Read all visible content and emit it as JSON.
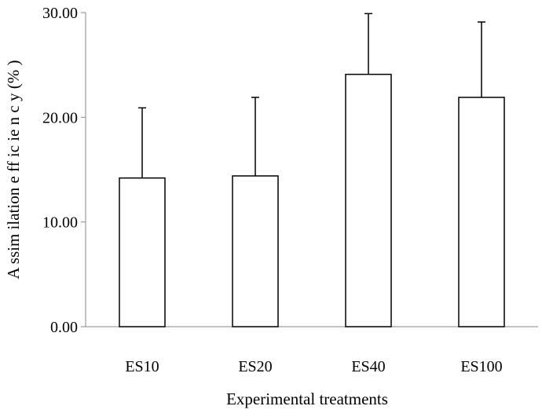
{
  "chart_data": {
    "type": "bar",
    "title": "",
    "xlabel": "Experimental treatments",
    "ylabel": "A ssim ilation  e ff ic ie n c y  (% )",
    "categories": [
      "ES10",
      "ES20",
      "ES40",
      "ES100"
    ],
    "values": [
      14.2,
      14.4,
      24.1,
      21.9
    ],
    "error_upper": [
      20.9,
      21.9,
      29.9,
      29.1
    ],
    "ylim": [
      0,
      30
    ],
    "yticks": [
      0,
      10,
      20,
      30
    ],
    "ytick_labels": [
      "0.00",
      "10.00",
      "20.00",
      "30.00"
    ],
    "grid": false,
    "legend": "none",
    "bar_fill": "#ffffff",
    "bar_stroke": "#000000"
  }
}
